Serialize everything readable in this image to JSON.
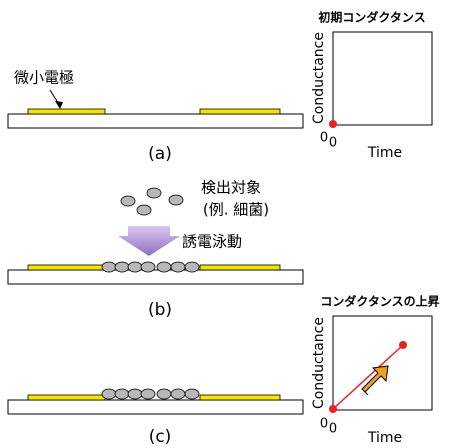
{
  "panels": [
    {
      "label": "(a)",
      "electrode_label": "微小電極"
    },
    {
      "label": "(b)",
      "target_label": "検出対象",
      "target_example": "(例. 細菌)",
      "process_label": "誘電泳動"
    },
    {
      "label": "(c)"
    }
  ],
  "plots": [
    {
      "title": "初期コンダクタンス",
      "y_label": "Conductance",
      "x_label": "Time",
      "y_origin": "0",
      "x_origin": "0"
    },
    {
      "title": "コンダクタンスの上昇",
      "y_label": "Conductance",
      "x_label": "Time",
      "y_origin": "0",
      "x_origin": "0"
    }
  ]
}
